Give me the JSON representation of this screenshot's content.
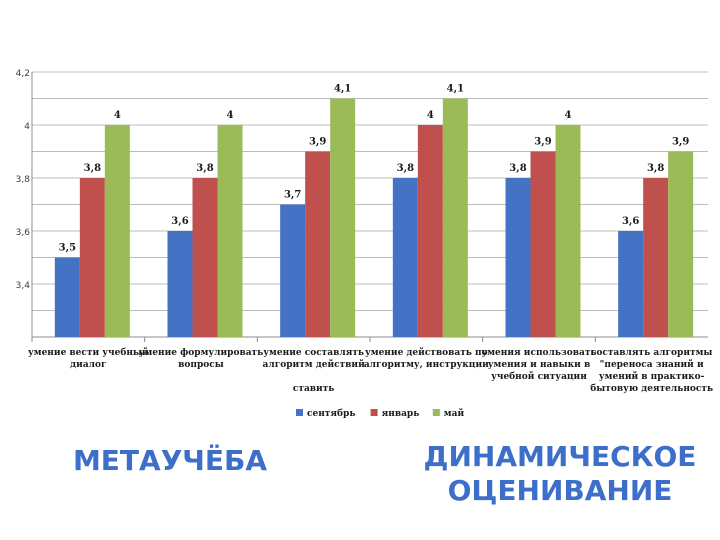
{
  "chart_data": {
    "type": "bar",
    "title": "",
    "xlabel": "",
    "ylabel": "",
    "ylim": [
      3.2,
      4.2
    ],
    "yticks": [
      "3,4",
      "3,6",
      "3,8",
      "4",
      "4,2"
    ],
    "ytick_values": [
      3.4,
      3.6,
      3.8,
      4.0,
      4.2
    ],
    "grid": true,
    "legend": "bottom",
    "categories": [
      [
        "умение вести учебный",
        "диалог"
      ],
      [
        "умение формулировать",
        "вопросы"
      ],
      [
        "умение составлять",
        "алгоритм действий",
        "",
        "ставить"
      ],
      [
        "умение действовать по",
        "алгоритму, инструкции"
      ],
      [
        "умения использовать",
        "умения и навыки в",
        "учебной ситуации"
      ],
      [
        "составлять алгоритмы",
        "\"переноса знаний и",
        "умений в практико-",
        "бытовую деятельность"
      ]
    ],
    "series": [
      {
        "name": "сентябрь",
        "color": "#4472c4",
        "values": [
          3.5,
          3.6,
          3.7,
          3.8,
          3.8,
          3.6
        ],
        "labels": [
          "3,5",
          "3,6",
          "3,7",
          "3,8",
          "3,8",
          "3,6"
        ]
      },
      {
        "name": "январь",
        "color": "#c0504d",
        "values": [
          3.8,
          3.8,
          3.9,
          4.0,
          3.9,
          3.8
        ],
        "labels": [
          "3,8",
          "3,8",
          "3,9",
          "4",
          "3,9",
          "3,8"
        ]
      },
      {
        "name": "май",
        "color": "#9bbb59",
        "values": [
          4.0,
          4.0,
          4.1,
          4.1,
          4.0,
          3.9
        ],
        "labels": [
          "4",
          "4",
          "4,1",
          "4,1",
          "4",
          "3,9"
        ]
      }
    ]
  },
  "captions": {
    "left": "МЕТАУЧЁБА",
    "right_line1": "ДИНАМИЧЕСКОЕ",
    "right_line2": "ОЦЕНИВАНИЕ"
  }
}
